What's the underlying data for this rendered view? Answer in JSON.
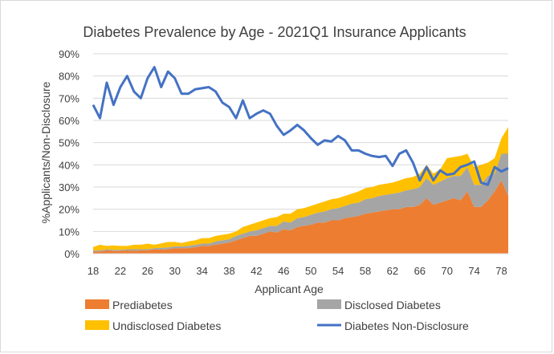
{
  "chart_data": {
    "type": "area",
    "title": "Diabetes Prevalence by Age - 2021Q1 Insurance Applicants",
    "xlabel": "Applicant Age",
    "ylabel": "%Applicants/Non-Disclosure",
    "xlim": [
      18,
      79
    ],
    "ylim": [
      0,
      0.9
    ],
    "y_ticks": [
      "0%",
      "10%",
      "20%",
      "30%",
      "40%",
      "50%",
      "60%",
      "70%",
      "80%",
      "90%"
    ],
    "x_ticks": [
      "18",
      "22",
      "26",
      "30",
      "34",
      "38",
      "42",
      "46",
      "50",
      "54",
      "58",
      "62",
      "66",
      "70",
      "74",
      "78"
    ],
    "x_tick_values": [
      18,
      22,
      26,
      30,
      34,
      38,
      42,
      46,
      50,
      54,
      58,
      62,
      66,
      70,
      74,
      78
    ],
    "grid": true,
    "legend_position": "bottom",
    "x": [
      18,
      19,
      20,
      21,
      22,
      23,
      24,
      25,
      26,
      27,
      28,
      29,
      30,
      31,
      32,
      33,
      34,
      35,
      36,
      37,
      38,
      39,
      40,
      41,
      42,
      43,
      44,
      45,
      46,
      47,
      48,
      49,
      50,
      51,
      52,
      53,
      54,
      55,
      56,
      57,
      58,
      59,
      60,
      61,
      62,
      63,
      64,
      65,
      66,
      67,
      68,
      69,
      70,
      71,
      72,
      73,
      74,
      75,
      76,
      77,
      78,
      79
    ],
    "series": [
      {
        "name": "Prediabetes",
        "kind": "stacked-area",
        "color": "#ed7d31",
        "values": [
          0.01,
          0.01,
          0.015,
          0.012,
          0.012,
          0.015,
          0.012,
          0.015,
          0.015,
          0.02,
          0.018,
          0.02,
          0.025,
          0.025,
          0.025,
          0.03,
          0.035,
          0.035,
          0.04,
          0.045,
          0.05,
          0.06,
          0.07,
          0.08,
          0.08,
          0.09,
          0.1,
          0.095,
          0.11,
          0.105,
          0.12,
          0.125,
          0.13,
          0.14,
          0.14,
          0.15,
          0.15,
          0.16,
          0.165,
          0.17,
          0.18,
          0.185,
          0.19,
          0.195,
          0.2,
          0.2,
          0.21,
          0.21,
          0.22,
          0.25,
          0.22,
          0.23,
          0.24,
          0.25,
          0.24,
          0.28,
          0.21,
          0.21,
          0.24,
          0.28,
          0.33,
          0.26
        ]
      },
      {
        "name": "Disclosed Diabetes",
        "kind": "stacked-area",
        "color": "#a5a5a5",
        "values": [
          0.005,
          0.005,
          0.005,
          0.005,
          0.005,
          0.005,
          0.008,
          0.005,
          0.005,
          0.005,
          0.008,
          0.008,
          0.008,
          0.008,
          0.01,
          0.01,
          0.01,
          0.01,
          0.015,
          0.015,
          0.015,
          0.02,
          0.02,
          0.02,
          0.025,
          0.025,
          0.025,
          0.03,
          0.035,
          0.035,
          0.04,
          0.04,
          0.045,
          0.045,
          0.05,
          0.05,
          0.055,
          0.055,
          0.06,
          0.06,
          0.065,
          0.065,
          0.07,
          0.07,
          0.07,
          0.075,
          0.075,
          0.08,
          0.08,
          0.09,
          0.09,
          0.095,
          0.1,
          0.1,
          0.11,
          0.11,
          0.1,
          0.1,
          0.11,
          0.08,
          0.12,
          0.19
        ]
      },
      {
        "name": "Undisclosed Diabetes",
        "kind": "stacked-area",
        "color": "#ffc000",
        "values": [
          0.015,
          0.025,
          0.015,
          0.02,
          0.018,
          0.015,
          0.02,
          0.02,
          0.025,
          0.015,
          0.02,
          0.025,
          0.02,
          0.015,
          0.02,
          0.02,
          0.025,
          0.025,
          0.025,
          0.025,
          0.025,
          0.02,
          0.03,
          0.03,
          0.035,
          0.035,
          0.035,
          0.04,
          0.035,
          0.04,
          0.04,
          0.04,
          0.04,
          0.04,
          0.045,
          0.045,
          0.045,
          0.045,
          0.045,
          0.05,
          0.05,
          0.05,
          0.05,
          0.05,
          0.05,
          0.055,
          0.055,
          0.055,
          0.06,
          0.06,
          0.05,
          0.055,
          0.09,
          0.085,
          0.09,
          0.06,
          0.08,
          0.09,
          0.06,
          0.07,
          0.07,
          0.12
        ]
      },
      {
        "name": "Diabetes Non-Disclosure",
        "kind": "line",
        "color": "#4472c4",
        "values": [
          0.67,
          0.61,
          0.77,
          0.67,
          0.75,
          0.8,
          0.73,
          0.7,
          0.79,
          0.84,
          0.75,
          0.82,
          0.79,
          0.72,
          0.72,
          0.74,
          0.745,
          0.75,
          0.73,
          0.68,
          0.66,
          0.61,
          0.69,
          0.61,
          0.63,
          0.645,
          0.63,
          0.575,
          0.535,
          0.555,
          0.58,
          0.555,
          0.52,
          0.49,
          0.51,
          0.505,
          0.53,
          0.51,
          0.465,
          0.465,
          0.45,
          0.44,
          0.435,
          0.44,
          0.395,
          0.45,
          0.465,
          0.41,
          0.33,
          0.39,
          0.33,
          0.375,
          0.355,
          0.36,
          0.39,
          0.4,
          0.415,
          0.32,
          0.31,
          0.39,
          0.37,
          0.385
        ]
      }
    ]
  }
}
